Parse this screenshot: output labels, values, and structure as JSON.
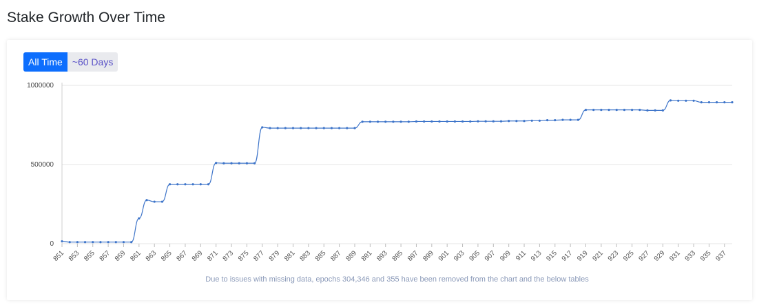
{
  "page": {
    "title": "Stake Growth Over Time"
  },
  "controls": {
    "all_time_label": "All Time",
    "days_label": "~60 Days"
  },
  "colors": {
    "line": "#3d74c9",
    "active_button": "#0d6efd",
    "grid": "#e5e5e5"
  },
  "chart_data": {
    "type": "line",
    "title": "",
    "xlabel": "",
    "ylabel": "",
    "ylim": [
      0,
      1000000
    ],
    "yticks": [
      0,
      500000,
      1000000
    ],
    "ytick_labels": [
      "0",
      "500000",
      "1000000"
    ],
    "xtick_labels": [
      "851",
      "853",
      "855",
      "857",
      "859",
      "861",
      "863",
      "865",
      "867",
      "869",
      "871",
      "873",
      "875",
      "877",
      "879",
      "881",
      "883",
      "885",
      "887",
      "889",
      "891",
      "893",
      "895",
      "897",
      "899",
      "901",
      "903",
      "905",
      "907",
      "909",
      "911",
      "913",
      "915",
      "917",
      "919",
      "921",
      "923",
      "925",
      "927",
      "929",
      "931",
      "933",
      "935",
      "937"
    ],
    "grid": "horizontal",
    "footnote": "Due to issues with missing data, epochs 304,346 and 355 have been removed from the chart and the below tables",
    "series": [
      {
        "x": [
          851,
          852,
          853,
          854,
          855,
          856,
          857,
          858,
          859,
          860,
          861,
          862,
          863,
          864,
          865,
          866,
          867,
          868,
          869,
          870,
          871,
          872,
          873,
          874,
          875,
          876,
          877,
          878,
          879,
          880,
          881,
          882,
          883,
          884,
          885,
          886,
          887,
          888,
          889,
          890,
          891,
          892,
          893,
          894,
          895,
          896,
          897,
          898,
          899,
          900,
          901,
          902,
          903,
          904,
          905,
          906,
          907,
          908,
          909,
          910,
          911,
          912,
          913,
          914,
          915,
          916,
          917,
          918,
          919,
          920,
          921,
          922,
          923,
          924,
          925,
          926,
          927,
          928,
          929,
          930,
          931,
          932,
          933,
          934,
          935,
          936,
          937,
          938
        ],
        "y": [
          15000,
          10000,
          10000,
          10000,
          10000,
          10000,
          10000,
          10000,
          10000,
          10000,
          160000,
          275000,
          265000,
          265000,
          375000,
          375000,
          375000,
          375000,
          375000,
          375000,
          510000,
          508000,
          508000,
          508000,
          508000,
          508000,
          735000,
          730000,
          730000,
          730000,
          730000,
          730000,
          730000,
          730000,
          730000,
          730000,
          730000,
          730000,
          730000,
          770000,
          770000,
          770000,
          770000,
          770000,
          770000,
          770000,
          772000,
          772000,
          772000,
          772000,
          772000,
          772000,
          772000,
          772000,
          773000,
          773000,
          773000,
          773000,
          775000,
          775000,
          775000,
          777000,
          777000,
          780000,
          780000,
          782000,
          782000,
          782000,
          845000,
          845000,
          845000,
          845000,
          845000,
          845000,
          845000,
          845000,
          842000,
          842000,
          842000,
          905000,
          903000,
          903000,
          903000,
          893000,
          893000,
          893000,
          893000,
          893000
        ]
      }
    ]
  }
}
